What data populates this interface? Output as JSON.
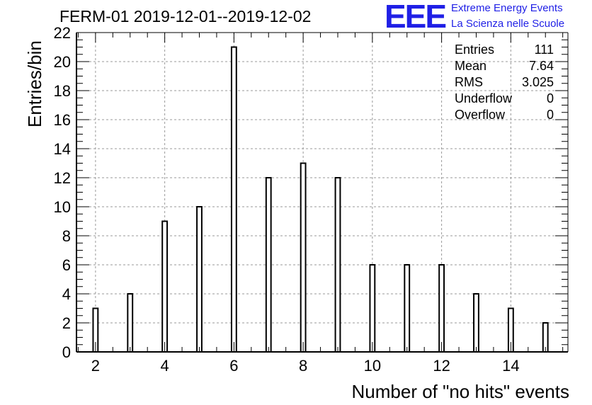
{
  "header": {
    "title": "FERM-01 2019-12-01--2019-12-02",
    "logo_text": "EEE",
    "logo_line1": "Extreme Energy Events",
    "logo_line2": "La Scienza nelle Scuole"
  },
  "stats": [
    {
      "label": "Entries",
      "value": "111"
    },
    {
      "label": "Mean",
      "value": "7.64"
    },
    {
      "label": "RMS",
      "value": "3.025"
    },
    {
      "label": "Underflow",
      "value": "0"
    },
    {
      "label": "Overflow",
      "value": "0"
    }
  ],
  "colors": {
    "logo": "#1f1fe6",
    "bars": "#000000",
    "grid": "#999999"
  },
  "chart_data": {
    "type": "bar",
    "title": "FERM-01 2019-12-01--2019-12-02",
    "xlabel": "Number of \"no hits\" events",
    "ylabel": "Entries/bin",
    "categories": [
      2,
      3,
      4,
      5,
      6,
      7,
      8,
      9,
      10,
      11,
      12,
      13,
      14,
      15
    ],
    "values": [
      3,
      4,
      9,
      10,
      21,
      12,
      13,
      12,
      6,
      6,
      6,
      4,
      3,
      2
    ],
    "xlim": [
      1.45,
      15.65
    ],
    "ylim": [
      0,
      22
    ],
    "xticks": [
      2,
      4,
      6,
      8,
      10,
      12,
      14
    ],
    "yticks": [
      0,
      2,
      4,
      6,
      8,
      10,
      12,
      14,
      16,
      18,
      20,
      22
    ],
    "grid": true,
    "legend": "none"
  }
}
